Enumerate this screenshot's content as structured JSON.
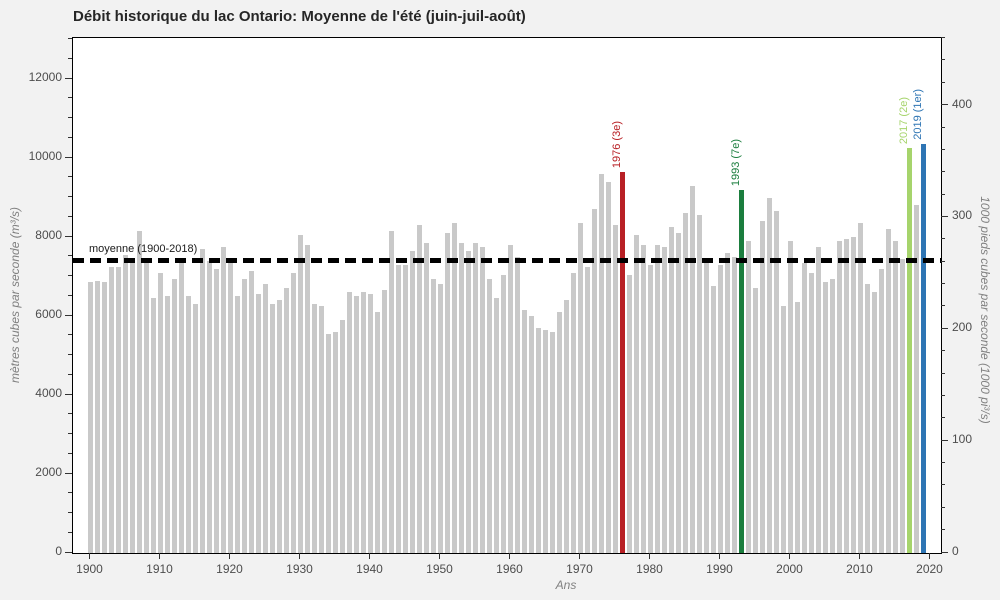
{
  "title": "Débit historique du lac Ontario: Moyenne de l'été (juin-juil-août)",
  "axes": {
    "y_left_label": "mètres cubes par seconde (m³/s)",
    "y_right_label": "1000 pieds cubes par seconde (1000 pi³/s)",
    "x_label": "Ans",
    "y_left_major_ticks": [
      0,
      2000,
      4000,
      6000,
      8000,
      10000,
      12000
    ],
    "y_left_minor_step": 500,
    "y_right_major_ticks": [
      0,
      100,
      200,
      300,
      400
    ],
    "y_right_minor_step": 20,
    "y_right_max_minor": 460,
    "x_major_ticks": [
      1900,
      1910,
      1920,
      1930,
      1940,
      1950,
      1960,
      1970,
      1980,
      1990,
      2000,
      2010,
      2020
    ]
  },
  "mean_line": {
    "label": "moyenne (1900-2018)",
    "value": 7400,
    "color": "#000000"
  },
  "chart_data": {
    "type": "bar",
    "title": "Débit historique du lac Ontario: Moyenne de l'été (juin-juil-août)",
    "xlabel": "Ans",
    "ylabel_left": "mètres cubes par seconde (m³/s)",
    "ylabel_right": "1000 pieds cubes par seconde (1000 pi³/s)",
    "ylim": [
      0,
      13040
    ],
    "unit_conversion_right": 35.3147,
    "grid": false,
    "bar_color": "#c9c9c9",
    "x": [
      1900,
      1901,
      1902,
      1903,
      1904,
      1905,
      1906,
      1907,
      1908,
      1909,
      1910,
      1911,
      1912,
      1913,
      1914,
      1915,
      1916,
      1917,
      1918,
      1919,
      1920,
      1921,
      1922,
      1923,
      1924,
      1925,
      1926,
      1927,
      1928,
      1929,
      1930,
      1931,
      1932,
      1933,
      1934,
      1935,
      1936,
      1937,
      1938,
      1939,
      1940,
      1941,
      1942,
      1943,
      1944,
      1945,
      1946,
      1947,
      1948,
      1949,
      1950,
      1951,
      1952,
      1953,
      1954,
      1955,
      1956,
      1957,
      1958,
      1959,
      1960,
      1961,
      1962,
      1963,
      1964,
      1965,
      1966,
      1967,
      1968,
      1969,
      1970,
      1971,
      1972,
      1973,
      1974,
      1975,
      1976,
      1977,
      1978,
      1979,
      1980,
      1981,
      1982,
      1983,
      1984,
      1985,
      1986,
      1987,
      1988,
      1989,
      1990,
      1991,
      1992,
      1993,
      1994,
      1995,
      1996,
      1997,
      1998,
      1999,
      2000,
      2001,
      2002,
      2003,
      2004,
      2005,
      2006,
      2007,
      2008,
      2009,
      2010,
      2011,
      2012,
      2013,
      2014,
      2015,
      2016,
      2017,
      2018,
      2019
    ],
    "values": [
      6850,
      6900,
      6850,
      7250,
      7250,
      7550,
      7450,
      8150,
      7400,
      6450,
      7100,
      6500,
      6950,
      7400,
      6500,
      6300,
      7700,
      7400,
      7200,
      7750,
      7400,
      6500,
      6950,
      7150,
      6550,
      6800,
      6300,
      6400,
      6700,
      7100,
      8050,
      7800,
      6300,
      6250,
      5550,
      5600,
      5900,
      6600,
      6500,
      6600,
      6550,
      6100,
      6650,
      8150,
      7300,
      7300,
      7650,
      8300,
      7850,
      6950,
      6800,
      8100,
      8350,
      7850,
      7650,
      7850,
      7750,
      6950,
      6450,
      7050,
      7800,
      7500,
      6150,
      6000,
      5700,
      5650,
      5600,
      6100,
      6400,
      7100,
      8350,
      7250,
      8700,
      9600,
      9400,
      8300,
      9650,
      7050,
      8050,
      7800,
      7300,
      7800,
      7750,
      8250,
      8100,
      8600,
      9300,
      8550,
      7450,
      6750,
      7300,
      7600,
      7500,
      9200,
      7900,
      6700,
      8400,
      9000,
      8650,
      6250,
      7900,
      6350,
      7350,
      7100,
      7750,
      6850,
      6950,
      7900,
      7950,
      8000,
      8350,
      6800,
      6600,
      7200,
      8200,
      7900,
      7450,
      10250,
      8800,
      10350
    ],
    "highlights": [
      {
        "year": 1976,
        "label": "1976 (3e)",
        "color": "#b82025"
      },
      {
        "year": 1993,
        "label": "1993 (7e)",
        "color": "#1b7e3e"
      },
      {
        "year": 2017,
        "label": "2017 (2e)",
        "color": "#a6d46c"
      },
      {
        "year": 2019,
        "label": "2019 (1er)",
        "color": "#2e75b4"
      }
    ]
  }
}
